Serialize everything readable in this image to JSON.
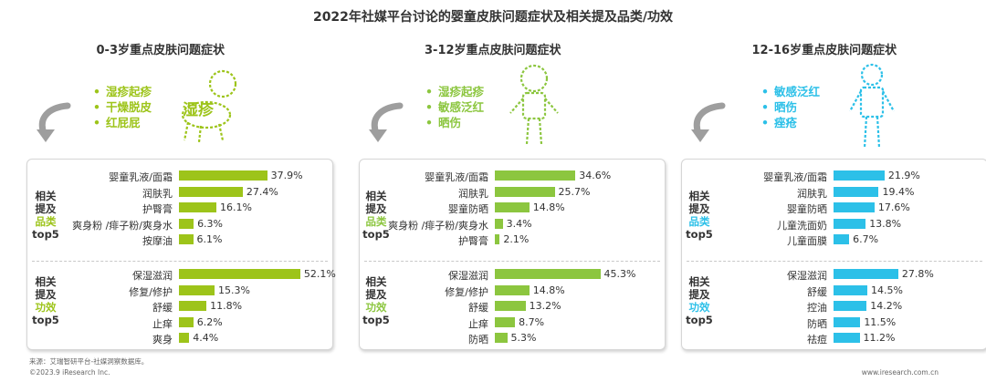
{
  "title": "2022年社媒平台讨论的婴童皮肤问题症状及相关提及品类/功效",
  "labels": {
    "product": [
      "相关",
      "提及",
      "品类",
      "top5"
    ],
    "efficacy": [
      "相关",
      "提及",
      "功效",
      "top5"
    ]
  },
  "colors": {
    "group1": "#9dc41a",
    "group2": "#8cc63f",
    "group3": "#2cc0e8"
  },
  "chart_data": [
    {
      "type": "bar",
      "title": "0-3岁重点皮肤问题症状",
      "symptoms": [
        "湿疹起疹",
        "干燥脱皮",
        "红屁屁"
      ],
      "cloud_word": "湿疹",
      "products": {
        "categories": [
          "婴童乳液/面霜",
          "润肤乳",
          "护臀膏",
          "爽身粉 /痱子粉/爽身水",
          "按摩油"
        ],
        "values": [
          37.9,
          27.4,
          16.1,
          6.3,
          6.1
        ],
        "labels": [
          "37.9%",
          "27.4%",
          "16.1%",
          "6.3%",
          "6.1%"
        ]
      },
      "efficacy": {
        "categories": [
          "保湿滋润",
          "修复/修护",
          "舒缓",
          "止痒",
          "爽身"
        ],
        "values": [
          52.1,
          15.3,
          11.8,
          6.2,
          4.4
        ],
        "labels": [
          "52.1%",
          "15.3%",
          "11.8%",
          "6.2%",
          "4.4%"
        ]
      }
    },
    {
      "type": "bar",
      "title": "3-12岁重点皮肤问题症状",
      "symptoms": [
        "湿疹起疹",
        "敏感泛红",
        "晒伤"
      ],
      "products": {
        "categories": [
          "婴童乳液/面霜",
          "润肤乳",
          "婴童防晒",
          "爽身粉 /痱子粉/爽身水",
          "护臀膏"
        ],
        "values": [
          34.6,
          25.7,
          14.8,
          3.4,
          2.1
        ],
        "labels": [
          "34.6%",
          "25.7%",
          "14.8%",
          "3.4%",
          "2.1%"
        ]
      },
      "efficacy": {
        "categories": [
          "保湿滋润",
          "修复/修护",
          "舒缓",
          "止痒",
          "防晒"
        ],
        "values": [
          45.3,
          14.8,
          13.2,
          8.7,
          5.3
        ],
        "labels": [
          "45.3%",
          "14.8%",
          "13.2%",
          "8.7%",
          "5.3%"
        ]
      }
    },
    {
      "type": "bar",
      "title": "12-16岁重点皮肤问题症状",
      "symptoms": [
        "敏感泛红",
        "晒伤",
        "痤疮"
      ],
      "products": {
        "categories": [
          "婴童乳液/面霜",
          "润肤乳",
          "婴童防晒",
          "儿童洗面奶",
          "儿童面膜"
        ],
        "values": [
          21.9,
          19.4,
          17.6,
          13.8,
          6.7
        ],
        "labels": [
          "21.9%",
          "19.4%",
          "17.6%",
          "13.8%",
          "6.7%"
        ]
      },
      "efficacy": {
        "categories": [
          "保湿滋润",
          "舒缓",
          "控油",
          "防晒",
          "祛痘"
        ],
        "values": [
          27.8,
          14.5,
          14.2,
          11.5,
          11.2
        ],
        "labels": [
          "27.8%",
          "14.5%",
          "14.2%",
          "11.5%",
          "11.2%"
        ]
      }
    }
  ],
  "source": "来源：艾瑞智研平台-社媒洞察数据库。",
  "copyright": "©2023.9 iResearch Inc.",
  "website": "www.iresearch.com.cn"
}
